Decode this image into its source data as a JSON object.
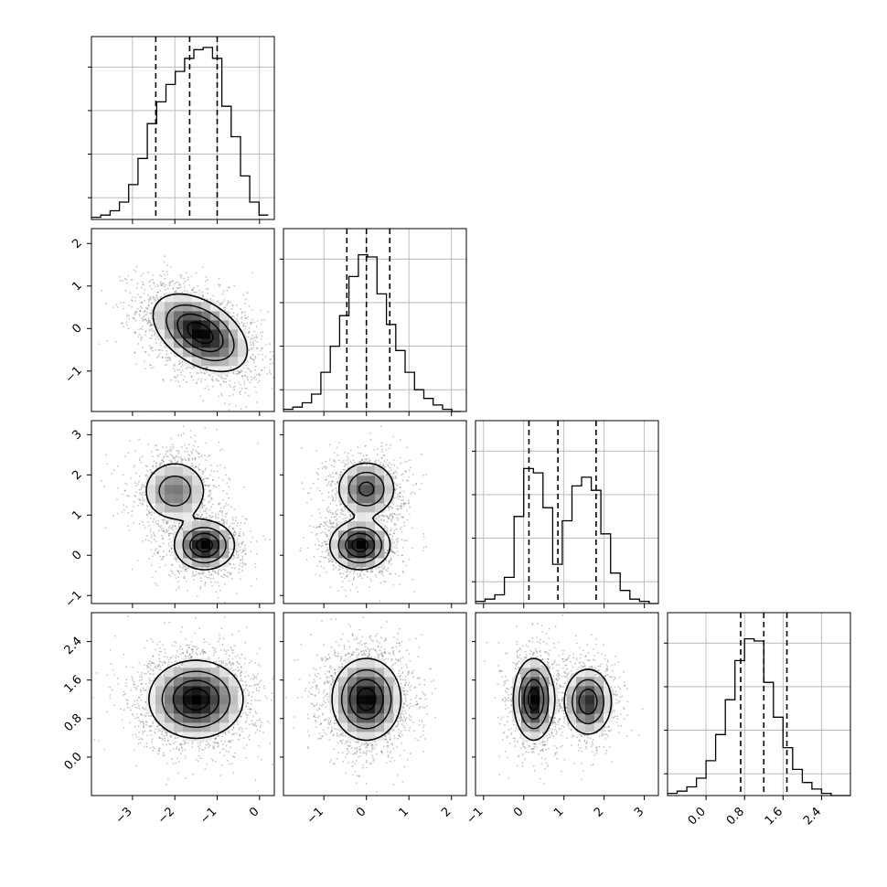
{
  "chart_data": {
    "type": "corner",
    "title": "",
    "variables": [
      {
        "name": "",
        "range": [
          -3.97,
          0.35
        ],
        "ticks": [
          -3,
          -2,
          -1,
          0
        ],
        "tick_labels": [
          "−3",
          "−2",
          "−1",
          "0"
        ],
        "quantiles": [
          -2.45,
          -1.65,
          -1.0
        ],
        "hist_grid_values": [
          5,
          15,
          25,
          35
        ]
      },
      {
        "name": "",
        "range": [
          -1.95,
          2.35
        ],
        "ticks": [
          -1,
          0,
          1,
          2
        ],
        "tick_labels": [
          "−1",
          "0",
          "1",
          "2"
        ],
        "quantiles": [
          -0.46,
          0.0,
          0.55
        ],
        "hist_grid_values": [
          5,
          15,
          25,
          35
        ]
      },
      {
        "name": "",
        "range": [
          -1.2,
          3.35
        ],
        "ticks": [
          -1,
          0,
          1,
          2,
          3
        ],
        "tick_labels": [
          "−1",
          "0",
          "1",
          "2",
          "3"
        ],
        "quantiles": [
          0.13,
          0.85,
          1.8
        ],
        "hist_grid_values": [
          5,
          15,
          25,
          35
        ]
      },
      {
        "name": "",
        "range": [
          -0.8,
          3.0
        ],
        "ticks": [
          0.0,
          0.8,
          1.6,
          2.4
        ],
        "tick_labels": [
          "0.0",
          "0.8",
          "1.6",
          "2.4"
        ],
        "quantiles": [
          0.72,
          1.2,
          1.68
        ],
        "hist_grid_values": [
          5,
          15,
          25,
          35
        ]
      }
    ],
    "histograms": [
      {
        "bin_edges": [
          -3.97,
          -3.75,
          -3.53,
          -3.31,
          -3.09,
          -2.87,
          -2.65,
          -2.43,
          -2.21,
          -1.99,
          -1.77,
          -1.55,
          -1.33,
          -1.11,
          -0.89,
          -0.67,
          -0.45,
          -0.23,
          -0.01,
          0.21
        ],
        "counts": [
          0.5,
          1,
          2,
          4,
          8,
          14,
          22,
          27,
          31,
          34,
          37,
          39,
          39.5,
          37,
          26,
          19,
          10,
          4,
          1
        ]
      },
      {
        "bin_edges": [
          -1.95,
          -1.73,
          -1.51,
          -1.29,
          -1.07,
          -0.85,
          -0.63,
          -0.41,
          -0.19,
          0.03,
          0.25,
          0.47,
          0.69,
          0.91,
          1.13,
          1.35,
          1.57,
          1.79,
          2.01,
          2.23
        ],
        "counts": [
          0.5,
          1,
          2,
          4,
          9,
          15,
          22,
          31,
          36,
          35.5,
          27,
          20,
          14,
          9,
          5,
          3,
          1.5,
          0.5,
          0
        ]
      },
      {
        "bin_edges": [
          -1.2,
          -0.96,
          -0.72,
          -0.48,
          -0.24,
          0.0,
          0.24,
          0.48,
          0.72,
          0.96,
          1.2,
          1.44,
          1.68,
          1.92,
          2.16,
          2.4,
          2.64,
          2.88,
          3.12,
          3.36
        ],
        "counts": [
          0.5,
          1,
          2,
          6,
          20,
          31,
          30,
          22,
          9,
          19,
          27,
          29,
          26,
          16,
          7,
          3,
          1,
          0.5,
          0
        ]
      },
      {
        "bin_edges": [
          -0.8,
          -0.6,
          -0.4,
          -0.2,
          0.0,
          0.2,
          0.4,
          0.6,
          0.8,
          1.0,
          1.2,
          1.4,
          1.6,
          1.8,
          2.0,
          2.2,
          2.4,
          2.6,
          2.8,
          3.0
        ],
        "counts": [
          0.5,
          1,
          2,
          4,
          8,
          14,
          22,
          31,
          36,
          35.5,
          26,
          18,
          11,
          6,
          3,
          1.5,
          0.5,
          0,
          0
        ]
      }
    ],
    "scatter_panels": [
      {
        "x_var": 0,
        "y_var": 1,
        "clusters": [
          {
            "center": [
              -1.4,
              -0.1
            ],
            "spread": [
              0.55,
              0.45
            ],
            "rho": -0.45,
            "weight": 1.0
          }
        ]
      },
      {
        "x_var": 0,
        "y_var": 2,
        "clusters": [
          {
            "center": [
              -2.0,
              1.6
            ],
            "spread": [
              0.4,
              0.4
            ],
            "rho": 0.0,
            "weight": 0.45
          },
          {
            "center": [
              -1.3,
              0.25
            ],
            "spread": [
              0.35,
              0.3
            ],
            "rho": 0.0,
            "weight": 0.55
          }
        ]
      },
      {
        "x_var": 1,
        "y_var": 2,
        "clusters": [
          {
            "center": [
              0.0,
              1.65
            ],
            "spread": [
              0.35,
              0.35
            ],
            "rho": 0.0,
            "weight": 0.45
          },
          {
            "center": [
              -0.15,
              0.25
            ],
            "spread": [
              0.35,
              0.3
            ],
            "rho": 0.0,
            "weight": 0.55
          }
        ]
      },
      {
        "x_var": 0,
        "y_var": 3,
        "clusters": [
          {
            "center": [
              -1.5,
              1.2
            ],
            "spread": [
              0.55,
              0.4
            ],
            "rho": 0.0,
            "weight": 1.0
          }
        ]
      },
      {
        "x_var": 1,
        "y_var": 3,
        "clusters": [
          {
            "center": [
              0.0,
              1.2
            ],
            "spread": [
              0.4,
              0.42
            ],
            "rho": 0.0,
            "weight": 1.0
          }
        ]
      },
      {
        "x_var": 2,
        "y_var": 3,
        "clusters": [
          {
            "center": [
              0.25,
              1.2
            ],
            "spread": [
              0.25,
              0.42
            ],
            "rho": 0.0,
            "weight": 0.55
          },
          {
            "center": [
              1.6,
              1.15
            ],
            "spread": [
              0.3,
              0.35
            ],
            "rho": 0.0,
            "weight": 0.45
          }
        ]
      }
    ],
    "contour_levels": [
      "0.5σ",
      "1σ",
      "1.5σ",
      "2σ"
    ],
    "grid": true,
    "colors": {
      "points": "#555555",
      "lines": "#000000",
      "grid": "#b0b0b0",
      "shade_dark": "#000000",
      "shade_light": "#ffffff"
    }
  }
}
